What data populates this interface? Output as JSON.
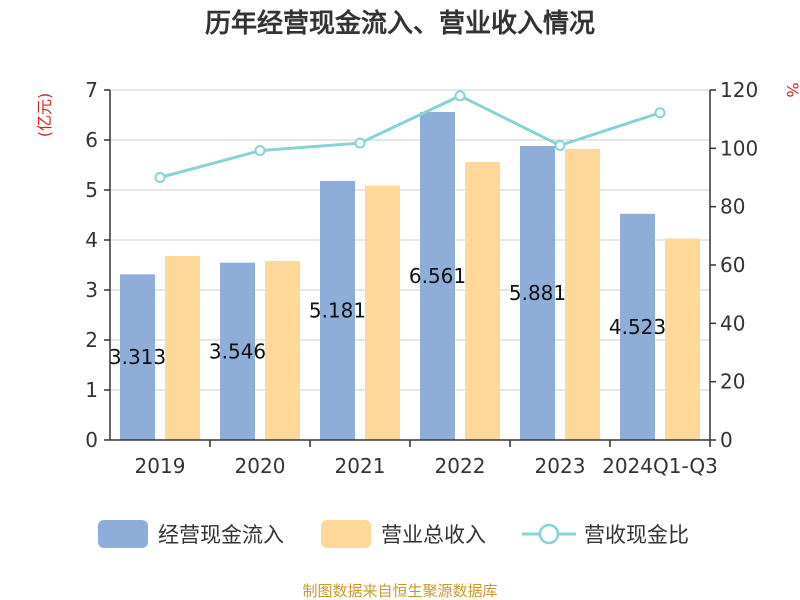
{
  "chart_data": {
    "type": "bar",
    "title": "历年经营现金流入、营业收入情况",
    "categories": [
      "2019",
      "2020",
      "2021",
      "2022",
      "2023",
      "2024Q1-Q3"
    ],
    "series": [
      {
        "name": "经营现金流入",
        "kind": "bar",
        "axis": "left",
        "color": "#8eadd9",
        "values": [
          3.313,
          3.546,
          5.181,
          6.561,
          5.881,
          4.523
        ],
        "labels": [
          "3.313",
          "3.546",
          "5.181",
          "6.561",
          "5.881",
          "4.523"
        ]
      },
      {
        "name": "营业总收入",
        "kind": "bar",
        "axis": "left",
        "color": "#fdd898",
        "values": [
          3.68,
          3.58,
          5.09,
          5.56,
          5.82,
          4.03
        ]
      },
      {
        "name": "营收现金比",
        "kind": "line",
        "axis": "right",
        "color": "#86d3d3",
        "values": [
          90,
          99.2,
          101.8,
          118,
          101,
          112.2
        ]
      }
    ],
    "y_left": {
      "unit": "(亿元)",
      "min": 0,
      "max": 7,
      "ticks": [
        "0",
        "1",
        "2",
        "3",
        "4",
        "5",
        "6",
        "7"
      ]
    },
    "y_right": {
      "unit": "%",
      "min": 0,
      "max": 120,
      "ticks": [
        "0",
        "20",
        "40",
        "60",
        "80",
        "100",
        "120"
      ]
    },
    "grid": true,
    "legend_position": "bottom"
  },
  "source": "制图数据来自恒生聚源数据库"
}
